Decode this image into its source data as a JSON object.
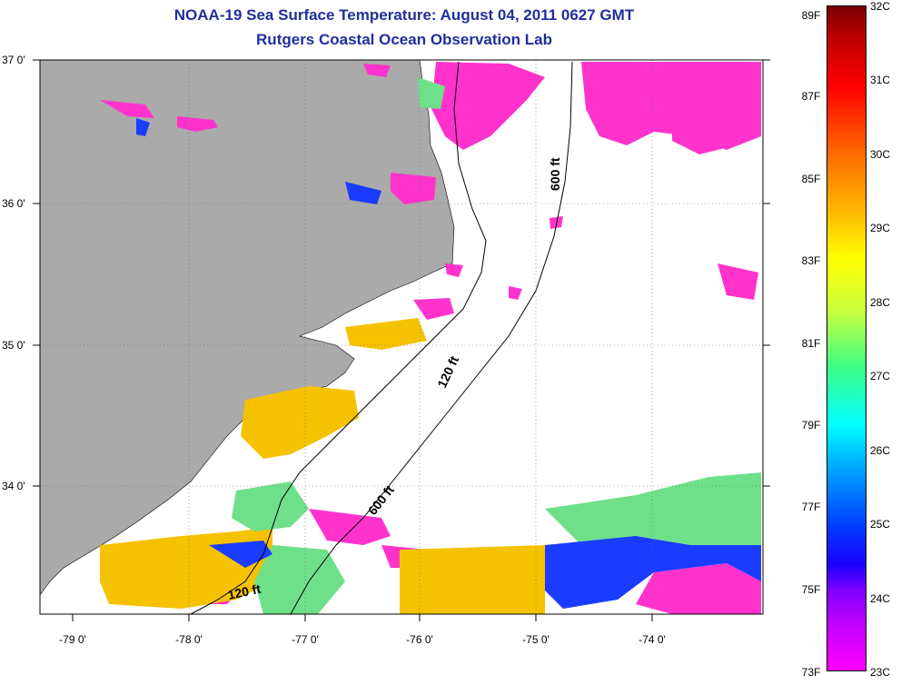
{
  "title_line1": "NOAA-19 Sea Surface Temperature:  August 04, 2011 0627 GMT",
  "title_line2": "Rutgers Coastal Ocean Observation Lab",
  "lat_labels": [
    "37 0'",
    "36 0'",
    "35 0'",
    "34 0'"
  ],
  "lon_labels": [
    "-79 0'",
    "-78 0'",
    "-77 0'",
    "-76 0'",
    "-75 0'",
    "-74 0'"
  ],
  "contours": [
    "600 ft",
    "120 ft",
    "600 ft",
    "120 ft"
  ],
  "colorbar": {
    "fahrenheit": [
      "89F",
      "87F",
      "85F",
      "83F",
      "81F",
      "79F",
      "77F",
      "75F",
      "73F"
    ],
    "celsius": [
      "32C",
      "31C",
      "30C",
      "29C",
      "28C",
      "27C",
      "26C",
      "25C",
      "24C",
      "23C"
    ]
  },
  "colors": {
    "land": "#aaaaaa",
    "title": "#1f2f9c",
    "cloud": "#ff33cc",
    "warm": "#f5c200",
    "cool": "#1a3cff"
  }
}
